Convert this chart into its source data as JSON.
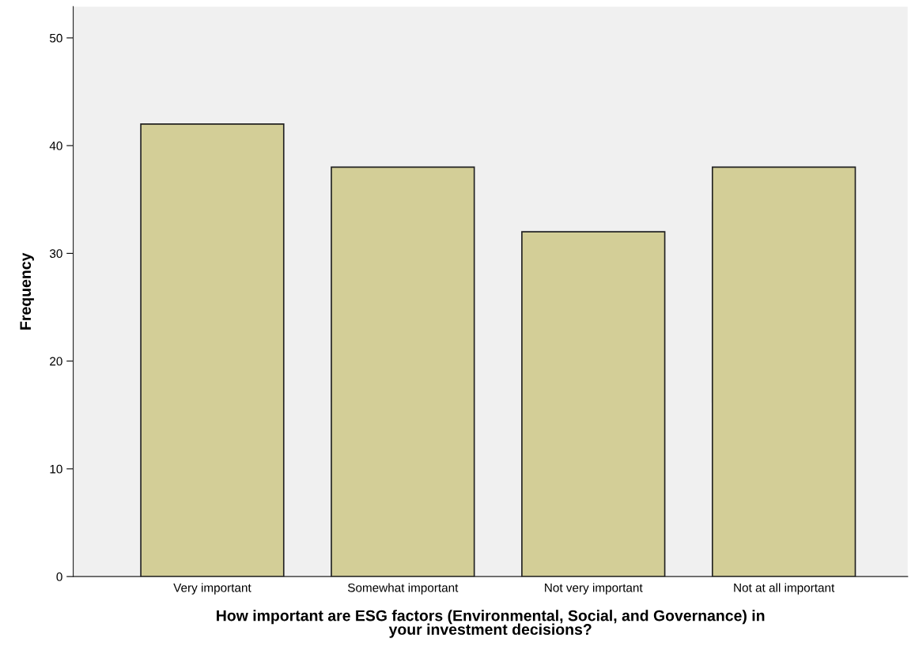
{
  "chart_data": {
    "type": "bar",
    "categories": [
      "Very important",
      "Somewhat important",
      "Not very important",
      "Not at all important"
    ],
    "values": [
      42,
      38,
      32,
      38
    ],
    "color": "#d3ce97",
    "xlabel": "How important are ESG factors (Environmental, Social, and Governance) in\nyour investment decisions?",
    "ylabel": "Frequency",
    "ylim": [
      0,
      52.9
    ],
    "yticks": [
      0,
      10,
      20,
      30,
      40,
      50
    ],
    "grid": false,
    "legend": false
  }
}
